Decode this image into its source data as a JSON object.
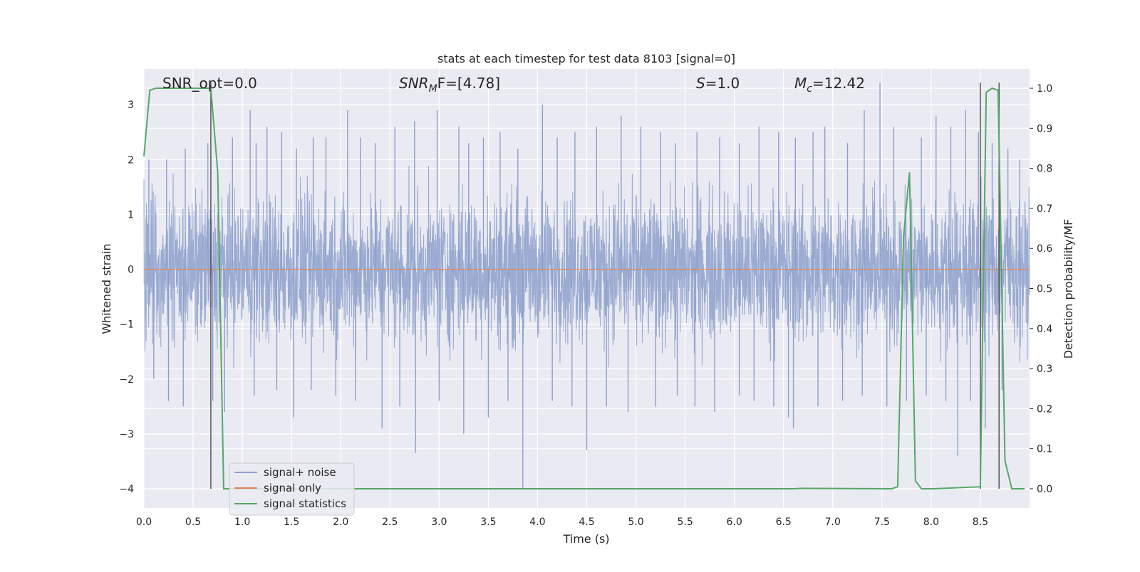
{
  "chart_data": {
    "type": "line",
    "title": "stats at each timestep for test data 8103 [signal=0]",
    "xlabel": "Time (s)",
    "ylabel": "Whitened strain",
    "ylabel_right": "Detection probability/MF",
    "xlim": [
      0.0,
      9.0
    ],
    "ylim": [
      -4.35,
      3.65
    ],
    "ylim_right": [
      -0.048,
      1.048
    ],
    "x_ticks": [
      0.0,
      0.5,
      1.0,
      1.5,
      2.0,
      2.5,
      3.0,
      3.5,
      4.0,
      4.5,
      5.0,
      5.5,
      6.0,
      6.5,
      7.0,
      7.5,
      8.0,
      8.5
    ],
    "x_tick_labels": [
      "0.0",
      "0.5",
      "1.0",
      "1.5",
      "2.0",
      "2.5",
      "3.0",
      "3.5",
      "4.0",
      "4.5",
      "5.0",
      "5.5",
      "6.0",
      "6.5",
      "7.0",
      "7.5",
      "8.0",
      "8.5"
    ],
    "y_ticks": [
      -4,
      -3,
      -2,
      -1,
      0,
      1,
      2,
      3
    ],
    "y_tick_labels": [
      "−4",
      "−3",
      "−2",
      "−1",
      "0",
      "1",
      "2",
      "3"
    ],
    "y_right_ticks": [
      0.0,
      0.1,
      0.2,
      0.3,
      0.4,
      0.5,
      0.6,
      0.7,
      0.8,
      0.9,
      1.0
    ],
    "y_right_tick_labels": [
      "0.0",
      "0.1",
      "0.2",
      "0.3",
      "0.4",
      "0.5",
      "0.6",
      "0.7",
      "0.8",
      "0.9",
      "1.0"
    ],
    "annotations": {
      "snr_opt": "SNR_opt=0.0",
      "snr_mf_prefix": "SNR",
      "snr_mf_sub": "M",
      "snr_mf_suffix": "F=[4.78]",
      "s_italic": "S",
      "s_value": "=1.0",
      "mc_italic": "M",
      "mc_sub": "c",
      "mc_value": "=12.42"
    },
    "legend": {
      "position": "lower-left",
      "entries": [
        "signal+ noise",
        "signal only",
        "signal statistics"
      ]
    },
    "series": [
      {
        "name": "signal+ noise",
        "color": "#8da0cb",
        "kind": "noise",
        "core_range": [
          -1.7,
          1.7
        ],
        "peak_range": [
          -4.0,
          3.4
        ],
        "peaks": [
          [
            0.05,
            2.0
          ],
          [
            0.23,
            2.0
          ],
          [
            0.42,
            2.2
          ],
          [
            0.65,
            2.3
          ],
          [
            0.9,
            2.4
          ],
          [
            1.08,
            2.9
          ],
          [
            1.14,
            2.3
          ],
          [
            1.25,
            2.6
          ],
          [
            1.4,
            2.5
          ],
          [
            1.55,
            2.2
          ],
          [
            1.72,
            2.4
          ],
          [
            1.85,
            2.4
          ],
          [
            2.07,
            2.9
          ],
          [
            2.2,
            2.4
          ],
          [
            2.35,
            2.3
          ],
          [
            2.55,
            2.6
          ],
          [
            2.75,
            2.7
          ],
          [
            2.98,
            2.9
          ],
          [
            3.2,
            2.6
          ],
          [
            3.3,
            2.3
          ],
          [
            3.45,
            2.4
          ],
          [
            3.62,
            2.5
          ],
          [
            3.8,
            2.2
          ],
          [
            4.05,
            3.0
          ],
          [
            4.2,
            2.4
          ],
          [
            4.38,
            2.5
          ],
          [
            4.6,
            2.6
          ],
          [
            4.85,
            2.8
          ],
          [
            5.05,
            2.6
          ],
          [
            5.25,
            2.5
          ],
          [
            5.4,
            2.3
          ],
          [
            5.62,
            2.5
          ],
          [
            5.85,
            2.4
          ],
          [
            6.05,
            2.3
          ],
          [
            6.25,
            2.6
          ],
          [
            6.45,
            2.5
          ],
          [
            6.62,
            2.4
          ],
          [
            6.8,
            2.5
          ],
          [
            6.92,
            2.6
          ],
          [
            7.15,
            2.3
          ],
          [
            7.32,
            2.9
          ],
          [
            7.48,
            3.4
          ],
          [
            7.62,
            2.6
          ],
          [
            7.9,
            2.4
          ],
          [
            8.05,
            2.8
          ],
          [
            8.2,
            2.6
          ],
          [
            8.35,
            2.9
          ],
          [
            8.48,
            2.5
          ],
          [
            8.62,
            2.3
          ],
          [
            8.78,
            2.2
          ],
          [
            8.9,
            2.0
          ],
          [
            0.1,
            -2.0
          ],
          [
            0.25,
            -2.4
          ],
          [
            0.4,
            -2.5
          ],
          [
            0.7,
            -2.4
          ],
          [
            0.82,
            -2.6
          ],
          [
            1.12,
            -2.3
          ],
          [
            1.35,
            -2.2
          ],
          [
            1.52,
            -2.7
          ],
          [
            1.7,
            -2.2
          ],
          [
            1.95,
            -2.3
          ],
          [
            2.15,
            -2.4
          ],
          [
            2.42,
            -2.9
          ],
          [
            2.6,
            -2.5
          ],
          [
            2.76,
            -3.35
          ],
          [
            3.0,
            -2.4
          ],
          [
            3.25,
            -3.0
          ],
          [
            3.5,
            -2.7
          ],
          [
            3.7,
            -2.4
          ],
          [
            3.85,
            -4.0
          ],
          [
            4.15,
            -2.4
          ],
          [
            4.35,
            -2.5
          ],
          [
            4.5,
            -3.3
          ],
          [
            4.7,
            -2.5
          ],
          [
            4.92,
            -2.6
          ],
          [
            5.2,
            -2.5
          ],
          [
            5.42,
            -2.3
          ],
          [
            5.6,
            -2.5
          ],
          [
            5.8,
            -2.6
          ],
          [
            6.05,
            -2.3
          ],
          [
            6.2,
            -2.4
          ],
          [
            6.4,
            -2.5
          ],
          [
            6.55,
            -2.7
          ],
          [
            6.6,
            -2.9
          ],
          [
            6.85,
            -2.5
          ],
          [
            7.1,
            -2.4
          ],
          [
            7.3,
            -2.3
          ],
          [
            7.55,
            -2.5
          ],
          [
            7.75,
            -2.4
          ],
          [
            7.95,
            -2.3
          ],
          [
            8.15,
            -2.4
          ],
          [
            8.27,
            -3.4
          ],
          [
            8.4,
            -2.4
          ],
          [
            8.55,
            -2.9
          ],
          [
            8.72,
            -2.2
          ]
        ]
      },
      {
        "name": "signal only",
        "color": "#dd8452",
        "x": [
          0.0,
          9.0
        ],
        "y": [
          0.0,
          0.0
        ]
      },
      {
        "name": "signal statistics",
        "color": "#55a868",
        "axis": "right",
        "x": [
          0.0,
          0.06,
          0.12,
          0.68,
          0.75,
          0.81,
          0.87,
          6.6,
          6.68,
          7.6,
          7.66,
          7.72,
          7.78,
          7.84,
          7.9,
          7.96,
          8.02,
          8.5,
          8.56,
          8.62,
          8.68,
          8.75,
          8.82,
          8.88,
          8.95
        ],
        "y": [
          0.83,
          0.995,
          1.0,
          1.0,
          0.79,
          0.0,
          0.0,
          0.0,
          0.001,
          0.0,
          0.005,
          0.63,
          0.79,
          0.02,
          0.0,
          0.0,
          0.0,
          0.005,
          0.99,
          1.0,
          0.995,
          0.07,
          0.0,
          0.0,
          0.0
        ]
      },
      {
        "name": "",
        "color": "#555555",
        "kind": "marker-lines",
        "x": [
          0.68,
          8.5,
          8.69
        ],
        "y_from": -4.0,
        "y_to": 3.4
      }
    ],
    "grid": true,
    "background_color": "#eaeaf2"
  }
}
